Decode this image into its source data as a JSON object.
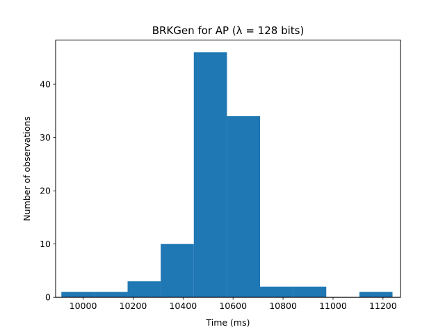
{
  "chart_data": {
    "type": "histogram",
    "title": "BRKGen for AP (λ = 128 bits)",
    "xlabel": "Time (ms)",
    "ylabel": "Number of observations",
    "bar_color": "#1f77b4",
    "xlim": [
      9890,
      11270
    ],
    "ylim": [
      0,
      48.3
    ],
    "bin_edges": [
      9913,
      10045.5,
      10178,
      10310.5,
      10443,
      10575.5,
      10708,
      10840.5,
      10973,
      11105.5,
      11238
    ],
    "counts": [
      1,
      1,
      3,
      10,
      46,
      34,
      2,
      2,
      0,
      1
    ],
    "x_ticks": [
      10000,
      10200,
      10400,
      10600,
      10800,
      11000,
      11200
    ],
    "y_ticks": [
      0,
      10,
      20,
      30,
      40
    ]
  }
}
